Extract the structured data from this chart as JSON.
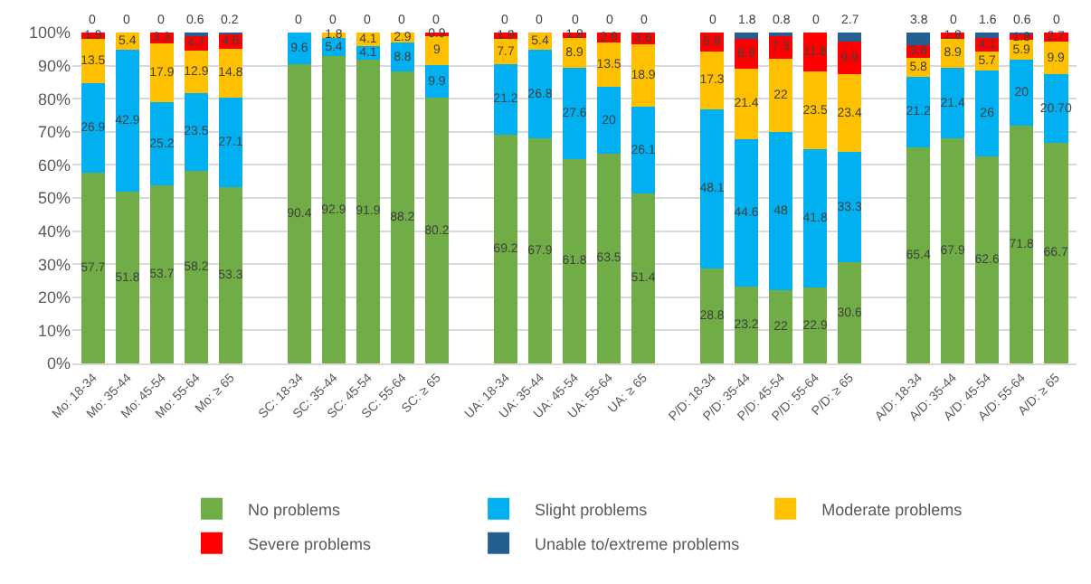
{
  "chart_data": {
    "type": "bar",
    "stacked": true,
    "categories": [
      "Mo: 18-34",
      "Mo: 35-44",
      "Mo: 45-54",
      "Mo: 55-64",
      "Mo: ≥ 65",
      null,
      "SC: 18-34",
      "SC: 35-44",
      "SC: 45-54",
      "SC: 55-64",
      "SC: ≥ 65",
      null,
      "UA: 18-34",
      "UA: 35-44",
      "UA: 45-54",
      "UA: 55-64",
      "UA: ≥ 65",
      null,
      "P/D: 18-34",
      "P/D: 35-44",
      "P/D: 45-54",
      "P/D: 55-64",
      "P/D: ≥ 65",
      null,
      "A/D: 18-34",
      "A/D: 35-44",
      "A/D: 45-54",
      "A/D: 55-64",
      "A/D: ≥ 65"
    ],
    "series": [
      {
        "name": "No problems",
        "color": "#70ad47",
        "values": [
          57.7,
          51.8,
          53.7,
          58.2,
          53.3,
          null,
          90.4,
          92.9,
          91.9,
          88.2,
          80.2,
          null,
          69.2,
          67.9,
          61.8,
          63.5,
          51.4,
          null,
          28.8,
          23.2,
          22,
          22.9,
          30.6,
          null,
          65.4,
          67.9,
          62.6,
          71.8,
          66.7
        ],
        "value_labels": [
          "57.7",
          "51.8",
          "53.7",
          "58.2",
          "53.3",
          null,
          "90.4",
          "92.9",
          "91.9",
          "88.2",
          "80.2",
          null,
          "69.2",
          "67.9",
          "61.8",
          "63.5",
          "51.4",
          null,
          "28.8",
          "23.2",
          "22",
          "22.9",
          "30.6",
          null,
          "65.4",
          "67.9",
          "62.6",
          "71.8",
          "66.7"
        ]
      },
      {
        "name": "Slight problems",
        "color": "#00b0f0",
        "values": [
          26.9,
          42.9,
          25.2,
          23.5,
          27.1,
          null,
          9.6,
          5.4,
          4.1,
          8.8,
          9.9,
          null,
          21.2,
          26.8,
          27.6,
          20,
          26.1,
          null,
          48.1,
          44.6,
          48,
          41.8,
          33.3,
          null,
          21.2,
          21.4,
          26,
          20,
          20.7
        ],
        "value_labels": [
          "26.9",
          "42.9",
          "25.2",
          "23.5",
          "27.1",
          null,
          "9.6",
          "5.4",
          "4.1",
          "8.8",
          "9.9",
          null,
          "21.2",
          "26.8",
          "27.6",
          "20",
          "26.1",
          null,
          "48.1",
          "44.6",
          "48",
          "41.8",
          "33.3",
          null,
          "21.2",
          "21.4",
          "26",
          "20",
          "20.70"
        ]
      },
      {
        "name": "Moderate problems",
        "color": "#ffc000",
        "values": [
          13.5,
          5.4,
          17.9,
          12.9,
          14.8,
          null,
          0,
          1.8,
          4.1,
          2.9,
          9,
          null,
          7.7,
          5.4,
          8.9,
          13.5,
          18.9,
          null,
          17.3,
          21.4,
          22,
          23.5,
          23.4,
          null,
          5.8,
          8.9,
          5.7,
          5.9,
          9.9
        ],
        "value_labels": [
          "13.5",
          "5.4",
          "17.9",
          "12.9",
          "14.8",
          null,
          null,
          "1.8",
          "4.1",
          "2.9",
          "9",
          null,
          "7.7",
          "5.4",
          "8.9",
          "13.5",
          "18.9",
          null,
          "17.3",
          "21.4",
          "22",
          "23.5",
          "23.4",
          null,
          "5.8",
          "8.9",
          "5.7",
          "5.9",
          "9.9"
        ]
      },
      {
        "name": "Severe problems",
        "color": "#ff0000",
        "values": [
          1.9,
          0,
          3.3,
          4.7,
          4.6,
          null,
          0,
          0,
          0,
          0,
          0.9,
          null,
          1.9,
          0,
          1.8,
          2.9,
          3.6,
          null,
          5.8,
          8.9,
          7.3,
          11.8,
          9.9,
          null,
          3.8,
          1.8,
          4.1,
          1.8,
          2.7
        ],
        "value_labels": [
          "1.9",
          null,
          "3.3",
          "4.7",
          "4.6",
          null,
          null,
          null,
          null,
          null,
          "0.9",
          null,
          "1.9",
          null,
          "1.8",
          "2.9",
          "3.6",
          null,
          "5.8",
          "8.9",
          "7.3",
          "11.8",
          "9.9",
          null,
          "3.8",
          "1.8",
          "4.1",
          "1.8",
          "2.7"
        ]
      },
      {
        "name": "Unable to/extreme problems",
        "color": "#255e91",
        "values": [
          0,
          0,
          0,
          0.6,
          0.2,
          null,
          0,
          0,
          0,
          0,
          0,
          null,
          0,
          0,
          0,
          0,
          0,
          null,
          0,
          1.8,
          0.8,
          0,
          2.7,
          null,
          3.8,
          0,
          1.6,
          0.6,
          0
        ],
        "value_labels": [
          "0",
          "0",
          "0",
          "0.6",
          "0.2",
          null,
          "0",
          "0",
          "0",
          "0",
          "0",
          null,
          "0",
          "0",
          "0",
          "0",
          "0",
          null,
          "0",
          "1.8",
          "0.8",
          "0",
          "2.7",
          null,
          "3.8",
          "0",
          "1.6",
          "0.6",
          "0"
        ]
      }
    ],
    "ylim": [
      0,
      100
    ],
    "yticks": [
      {
        "value": 0,
        "label": "0%"
      },
      {
        "value": 10,
        "label": "10%"
      },
      {
        "value": 20,
        "label": "20%"
      },
      {
        "value": 30,
        "label": "30%"
      },
      {
        "value": 40,
        "label": "40%"
      },
      {
        "value": 50,
        "label": "50%"
      },
      {
        "value": 60,
        "label": "60%"
      },
      {
        "value": 70,
        "label": "70%"
      },
      {
        "value": 80,
        "label": "80%"
      },
      {
        "value": 90,
        "label": "90%"
      },
      {
        "value": 100,
        "label": "100%"
      }
    ],
    "grid": "y",
    "legend": "bottom"
  }
}
